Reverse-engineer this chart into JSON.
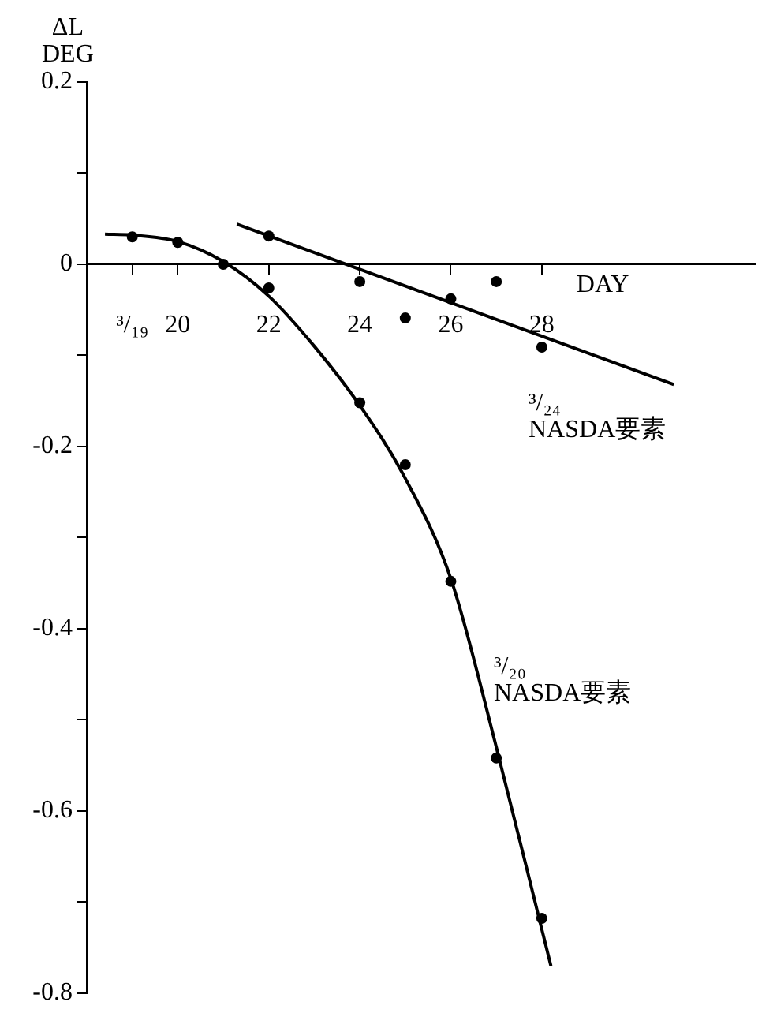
{
  "chart_data": {
    "type": "scatter",
    "xlabel": "DAY",
    "ylabel": "ΔL\nDEG",
    "xlim": [
      18,
      32.7
    ],
    "ylim": [
      -0.8,
      0.2
    ],
    "xticks": [
      {
        "value": 19,
        "label": "³/₁₉"
      },
      20,
      22,
      24,
      26,
      28
    ],
    "yticks": [
      0.2,
      {
        "value": 0.1,
        "label": null
      },
      0,
      {
        "value": -0.1,
        "label": null
      },
      -0.2,
      {
        "value": -0.3,
        "label": null
      },
      -0.4,
      {
        "value": -0.5,
        "label": null
      },
      -0.6,
      {
        "value": -0.7,
        "label": null
      },
      -0.8
    ],
    "grid": false,
    "legend": false,
    "series": [
      {
        "type": "line",
        "color": "#000000",
        "marker": "none",
        "line_style": "solid",
        "x": [
          18.4,
          19,
          20,
          21,
          22,
          23,
          24,
          25,
          26,
          27,
          28,
          28.2
        ],
        "values": [
          0.033,
          0.032,
          0.025,
          0.003,
          -0.035,
          -0.09,
          -0.155,
          -0.235,
          -0.345,
          -0.53,
          -0.73,
          -0.77
        ]
      },
      {
        "type": "scatter",
        "color": "#000000",
        "marker": "circle",
        "x": [
          19,
          20,
          21,
          22,
          24,
          25,
          26,
          27,
          28
        ],
        "values": [
          0.03,
          0.024,
          0.0,
          -0.026,
          -0.152,
          -0.22,
          -0.348,
          -0.542,
          -0.718
        ]
      },
      {
        "type": "line",
        "color": "#000000",
        "marker": "none",
        "line_style": "solid",
        "x": [
          21.3,
          30.9
        ],
        "values": [
          0.044,
          -0.132
        ]
      },
      {
        "type": "scatter",
        "color": "#000000",
        "marker": "circle",
        "x": [
          22,
          24,
          25,
          26,
          27,
          28
        ],
        "values": [
          0.031,
          -0.019,
          -0.059,
          -0.038,
          -0.019,
          -0.091
        ]
      }
    ],
    "annotations": [
      "³/₂₄ NASDA要素",
      "³/₂₀ NASDA要素"
    ]
  }
}
